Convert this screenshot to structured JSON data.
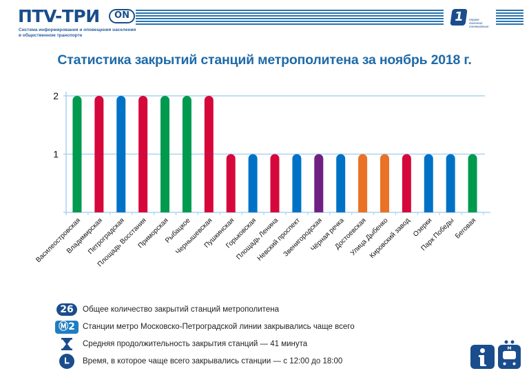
{
  "header": {
    "logo_text": "ПТV-ТРИ",
    "logo_badge": "ON",
    "logo_subtitle_line1": "Система информирования и оповещения населения",
    "logo_subtitle_line2": "в общественном транспорте",
    "brand_mark": "1",
    "brand_text_line1": "первое",
    "brand_text_line2": "полезное",
    "brand_text_line3": "телевидение"
  },
  "colors": {
    "brand_dark": "#1a4d8c",
    "title": "#1e6aa8",
    "grid": "#a8d4f0",
    "line_green": "#009a4e",
    "line_red": "#d6083b",
    "line_blue": "#0072c6",
    "line_purple": "#702082",
    "line_orange": "#ea7125"
  },
  "chart_data": {
    "type": "bar",
    "title": "Статистика закрытий станций метрополитена за ноябрь 2018 г.",
    "xlabel": "",
    "ylabel": "",
    "ylim": [
      0,
      2
    ],
    "yticks": [
      1,
      2
    ],
    "grid": true,
    "legend": "none",
    "categories": [
      "Василеостровская",
      "Владимирская",
      "Петроградская",
      "Площадь Восстания",
      "Приморская",
      "Рыбацкое",
      "Чернышевская",
      "Пушкинская",
      "Горьковская",
      "Площадь Ленина",
      "Невский проспект",
      "Звенигородская",
      "Чёрная речка",
      "Достоевская",
      "Улица Дыбенко",
      "Кировский завод",
      "Озерки",
      "Парк Победы",
      "Беговая"
    ],
    "values": [
      2,
      2,
      2,
      2,
      2,
      2,
      2,
      1,
      1,
      1,
      1,
      1,
      1,
      1,
      1,
      1,
      1,
      1,
      1
    ],
    "bar_colors": [
      "#009a4e",
      "#d6083b",
      "#0072c6",
      "#d6083b",
      "#009a4e",
      "#009a4e",
      "#d6083b",
      "#d6083b",
      "#0072c6",
      "#d6083b",
      "#0072c6",
      "#702082",
      "#0072c6",
      "#ea7125",
      "#ea7125",
      "#d6083b",
      "#0072c6",
      "#0072c6",
      "#009a4e"
    ]
  },
  "legend": {
    "items": [
      {
        "icon": "count-badge",
        "badge": "26",
        "text": "Общее количество закрытий станций метрополитена"
      },
      {
        "icon": "metro-line-badge",
        "badge": "Ⓜ2",
        "text": "Станции метро Московско-Петроградской линии закрывались чаще всего"
      },
      {
        "icon": "hourglass-icon",
        "text": "Средняя продолжительность закрытия станций — 41 минута"
      },
      {
        "icon": "clock-icon",
        "text": "Время, в которое чаще всего закрывались станции — с 12:00 до 18:00"
      }
    ]
  },
  "footer_icons": {
    "info": "info-icon",
    "metro": "metro-train-icon",
    "metro_letter": "M"
  }
}
